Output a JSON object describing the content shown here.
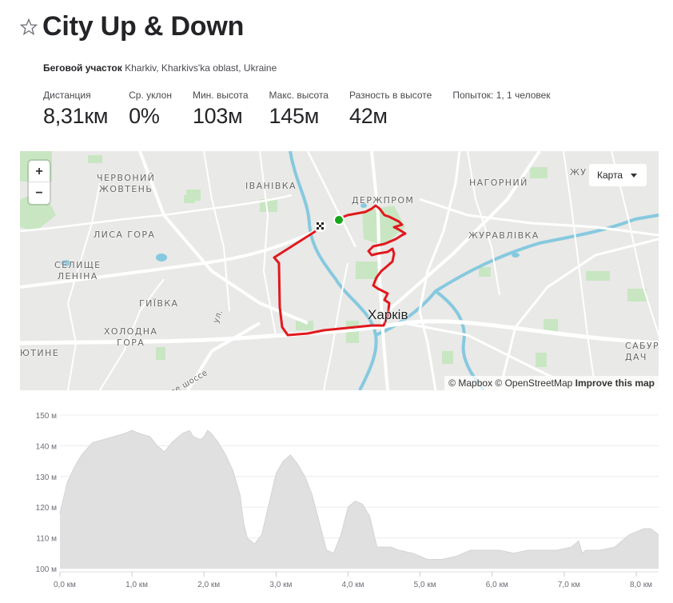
{
  "segment": {
    "title": "City Up & Down",
    "location_type": "Беговой участок",
    "location": "Kharkiv, Kharkivs'ka oblast, Ukraine"
  },
  "stats": [
    {
      "label": "Дистанция",
      "value": "8,31км"
    },
    {
      "label": "Ср. уклон",
      "value": "0%"
    },
    {
      "label": "Мин. высота",
      "value": "103м"
    },
    {
      "label": "Макс. высота",
      "value": "145м"
    },
    {
      "label": "Разность в высоте",
      "value": "42м"
    },
    {
      "label": "Попыток: 1, 1 человек",
      "value": ""
    }
  ],
  "map": {
    "zoom_in": "+",
    "zoom_out": "−",
    "type_label": "Карта",
    "attribution_1": "© Mapbox © OpenStreetMap",
    "attribution_2": "Improve this map",
    "city_label": "Харків",
    "labels": [
      {
        "id": "chervonyi",
        "text": "ЧЕРВОНИЙ\nЖОВТЕНЬ"
      },
      {
        "id": "ivanivka",
        "text": "ІВАНІВКА"
      },
      {
        "id": "derzhprom",
        "text": "ДЕРЖПРОМ"
      },
      {
        "id": "nahirnyi",
        "text": "НАГОРНИЙ"
      },
      {
        "id": "zhu",
        "text": "ЖУ"
      },
      {
        "id": "lysa",
        "text": "ЛИСА ГОРА"
      },
      {
        "id": "zhuravlivka",
        "text": "ЖУРАВЛІВКА"
      },
      {
        "id": "selyshche",
        "text": "СЕЛИЩЕ\nЛЕНІНА"
      },
      {
        "id": "hyivka",
        "text": "ГИЇВКА"
      },
      {
        "id": "kholodna",
        "text": "ХОЛОДНА\nГОРА"
      },
      {
        "id": "yutyne",
        "text": "ЮТИНЕ"
      },
      {
        "id": "sabur",
        "text": "САБУР\nДАЧ"
      }
    ],
    "road_labels": [
      "ое шоссе",
      "ул."
    ],
    "colors": {
      "route": "#e0191e",
      "start": "#17a51a",
      "park": "#c5e4c0",
      "water": "#7ec8e0",
      "road": "#ffffff"
    }
  },
  "chart_data": {
    "type": "area",
    "xlabel": "",
    "ylabel": "",
    "x_unit": "км",
    "y_unit": "м",
    "x_ticks": [
      "0,0 км",
      "1,0 км",
      "2,0 км",
      "3,0 км",
      "4,0 км",
      "5,0 км",
      "6,0 км",
      "7,0 км",
      "8,0 км"
    ],
    "y_ticks": [
      "100 м",
      "110 м",
      "120 м",
      "130 м",
      "140 м",
      "150 м"
    ],
    "xlim": [
      0,
      8.31
    ],
    "ylim": [
      100,
      150
    ],
    "grid": true,
    "color": "#e0e0e0",
    "x": [
      0,
      0.1,
      0.2,
      0.3,
      0.45,
      0.6,
      0.75,
      0.9,
      1.0,
      1.1,
      1.25,
      1.35,
      1.45,
      1.55,
      1.7,
      1.8,
      1.85,
      1.95,
      2.0,
      2.05,
      2.1,
      2.2,
      2.3,
      2.4,
      2.5,
      2.55,
      2.6,
      2.7,
      2.8,
      2.9,
      3.0,
      3.1,
      3.2,
      3.3,
      3.4,
      3.5,
      3.6,
      3.7,
      3.8,
      3.9,
      4.0,
      4.1,
      4.2,
      4.3,
      4.4,
      4.5,
      4.6,
      4.7,
      4.9,
      5.1,
      5.3,
      5.5,
      5.7,
      5.9,
      6.1,
      6.3,
      6.5,
      6.7,
      6.9,
      7.1,
      7.2,
      7.25,
      7.3,
      7.5,
      7.7,
      7.9,
      8.1,
      8.2,
      8.31
    ],
    "y": [
      118,
      128,
      133,
      137,
      141,
      142,
      143,
      144,
      145,
      144,
      143,
      140,
      138,
      141,
      144,
      145,
      143,
      142,
      143,
      145,
      144,
      141,
      137,
      132,
      124,
      115,
      110,
      108,
      111,
      121,
      131,
      135,
      137,
      134,
      130,
      124,
      115,
      106,
      105,
      111,
      120,
      122,
      121,
      117,
      107,
      107,
      107,
      106,
      105,
      103,
      103,
      104,
      106,
      106,
      106,
      105,
      106,
      106,
      106,
      107,
      109,
      105,
      106,
      106,
      107,
      111,
      113,
      113,
      111
    ]
  }
}
